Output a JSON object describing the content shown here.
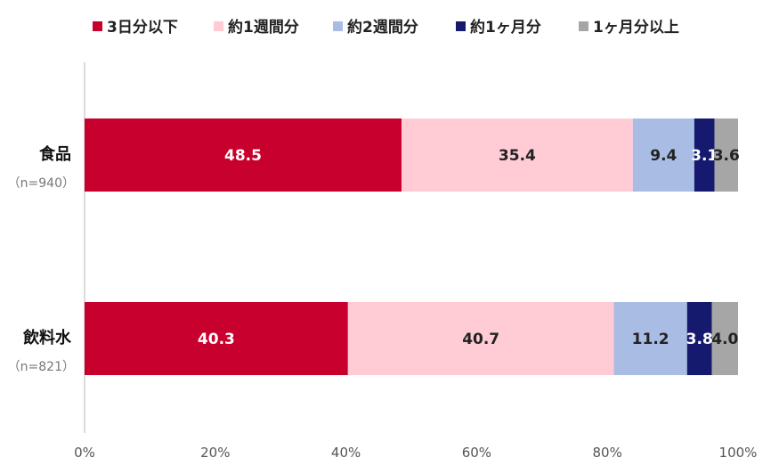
{
  "chart_data": {
    "type": "bar",
    "orientation": "horizontal",
    "stacked": true,
    "title": "",
    "xlabel": "",
    "ylabel": "",
    "xlim": [
      0,
      100
    ],
    "x_ticks": [
      "0%",
      "20%",
      "40%",
      "60%",
      "80%",
      "100%"
    ],
    "legend_position": "top",
    "grid": false,
    "categories": [
      {
        "label": "食品",
        "n": "（n=940）"
      },
      {
        "label": "飲料水",
        "n": "（n=821）"
      }
    ],
    "series": [
      {
        "name": "3日分以下",
        "color": "#C8002D",
        "label_color": "#ffffff",
        "values": [
          48.5,
          40.3
        ],
        "labels": [
          "48.5",
          "40.3"
        ]
      },
      {
        "name": "約1週間分",
        "color": "#FFCCD5",
        "label_color": "#222222",
        "values": [
          35.4,
          40.7
        ],
        "labels": [
          "35.4",
          "40.7"
        ]
      },
      {
        "name": "約2週間分",
        "color": "#A9BCE3",
        "label_color": "#222222",
        "values": [
          9.4,
          11.2
        ],
        "labels": [
          "9.4",
          "11.2"
        ]
      },
      {
        "name": "約1ヶ月分",
        "color": "#161A6E",
        "label_color": "#ffffff",
        "values": [
          3.1,
          3.8
        ],
        "labels": [
          "3.1",
          "3.8"
        ]
      },
      {
        "name": "1ヶ月分以上",
        "color": "#A6A6A6",
        "label_color": "#222222",
        "values": [
          3.6,
          4.0
        ],
        "labels": [
          "3.6",
          "4.0"
        ]
      }
    ]
  }
}
